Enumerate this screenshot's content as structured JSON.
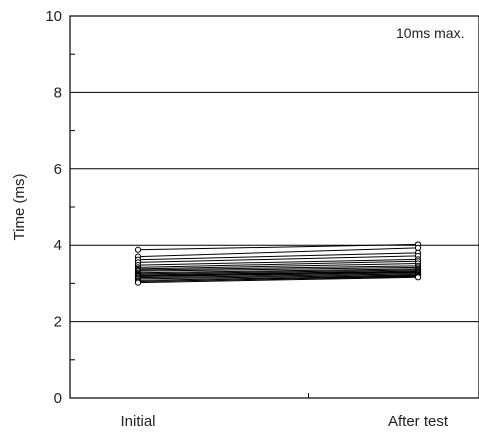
{
  "chart_data": {
    "type": "line",
    "ylabel": "Time  (ms)",
    "ylim": [
      0,
      10
    ],
    "y_ticks": [
      "0",
      "2",
      "4",
      "6",
      "8",
      "10"
    ],
    "categories": [
      "Initial",
      "After test"
    ],
    "annotation": "10ms max.",
    "grid": "horizontal",
    "series": [
      {
        "values": [
          3.88,
          4.02
        ]
      },
      {
        "values": [
          3.7,
          3.93
        ]
      },
      {
        "values": [
          3.62,
          3.8
        ]
      },
      {
        "values": [
          3.55,
          3.72
        ]
      },
      {
        "values": [
          3.48,
          3.63
        ]
      },
      {
        "values": [
          3.42,
          3.58
        ]
      },
      {
        "values": [
          3.38,
          3.52
        ]
      },
      {
        "values": [
          3.35,
          3.46
        ]
      },
      {
        "values": [
          3.32,
          3.42
        ]
      },
      {
        "values": [
          3.28,
          3.38
        ]
      },
      {
        "values": [
          3.25,
          3.35
        ]
      },
      {
        "values": [
          3.22,
          3.32
        ]
      },
      {
        "values": [
          3.2,
          3.3
        ]
      },
      {
        "values": [
          3.18,
          3.28
        ]
      },
      {
        "values": [
          3.15,
          3.25
        ]
      },
      {
        "values": [
          3.12,
          3.22
        ]
      },
      {
        "values": [
          3.08,
          3.2
        ]
      },
      {
        "values": [
          3.05,
          3.18
        ]
      },
      {
        "values": [
          3.02,
          3.16
        ]
      }
    ]
  }
}
